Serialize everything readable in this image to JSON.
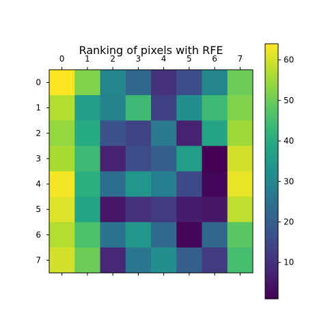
{
  "chart_data": {
    "type": "heatmap",
    "title": "Ranking of pixels with RFE",
    "x_ticks": [
      "0",
      "1",
      "2",
      "3",
      "4",
      "5",
      "6",
      "7"
    ],
    "y_ticks": [
      "0",
      "1",
      "2",
      "3",
      "4",
      "5",
      "6",
      "7"
    ],
    "x_tick_position": "top",
    "colormap": "viridis",
    "values": [
      [
        64,
        52,
        30,
        22,
        10,
        16,
        30,
        50
      ],
      [
        57,
        36,
        29,
        44,
        13,
        32,
        44,
        52
      ],
      [
        54,
        40,
        17,
        14,
        27,
        7,
        38,
        55
      ],
      [
        56,
        44,
        7,
        16,
        20,
        36,
        1,
        60
      ],
      [
        63,
        41,
        24,
        34,
        28,
        15,
        2,
        62
      ],
      [
        61,
        38,
        5,
        10,
        12,
        6,
        5,
        58
      ],
      [
        57,
        46,
        25,
        34,
        23,
        2,
        22,
        48
      ],
      [
        60,
        50,
        8,
        26,
        32,
        20,
        12,
        45
      ]
    ],
    "colorbar": {
      "range": [
        1,
        64
      ],
      "ticks": [
        "10",
        "20",
        "30",
        "40",
        "50",
        "60"
      ]
    },
    "grid": false,
    "legend": "colorbar-right"
  }
}
